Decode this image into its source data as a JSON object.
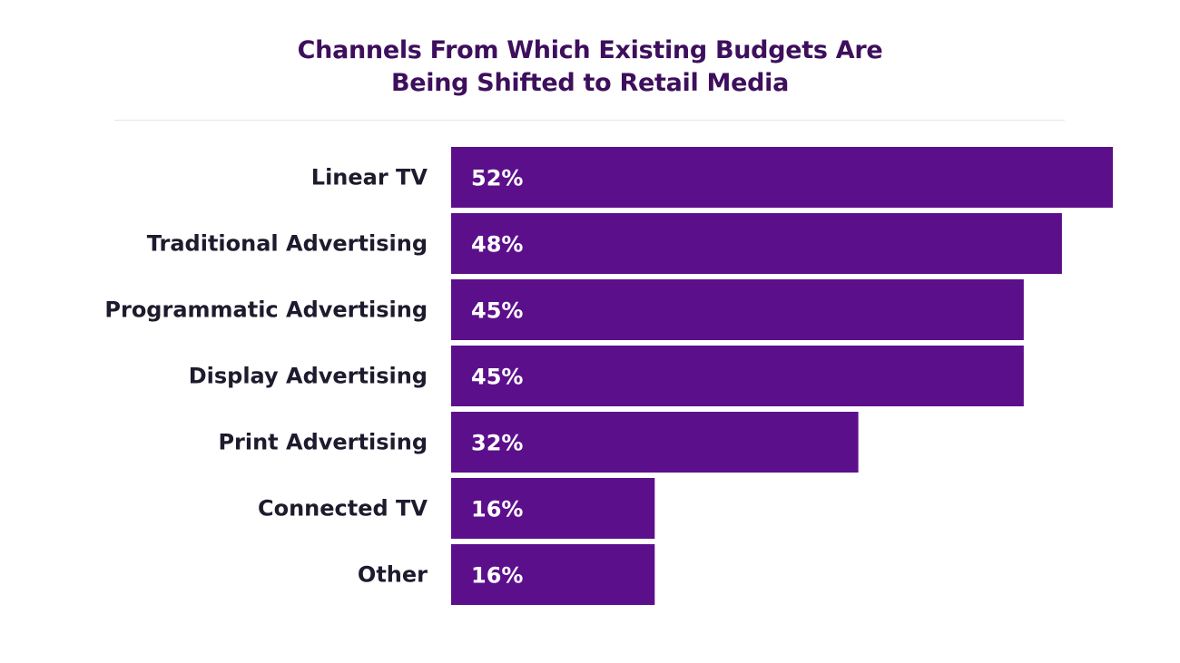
{
  "chart_data": {
    "type": "bar",
    "orientation": "horizontal",
    "title_lines": [
      "Channels From Which Existing Budgets Are",
      "Being Shifted to Retail Media"
    ],
    "categories": [
      "Linear TV",
      "Traditional Advertising",
      "Programmatic Advertising",
      "Display Advertising",
      "Print Advertising",
      "Connected TV",
      "Other"
    ],
    "values": [
      52,
      48,
      45,
      45,
      32,
      16,
      16
    ],
    "value_labels": [
      "52%",
      "48%",
      "45%",
      "45%",
      "32%",
      "16%",
      "16%"
    ],
    "xlim": [
      0,
      52
    ],
    "grid": false,
    "bar_color": "#5c0f8b",
    "title_color": "#3d0f5c"
  }
}
